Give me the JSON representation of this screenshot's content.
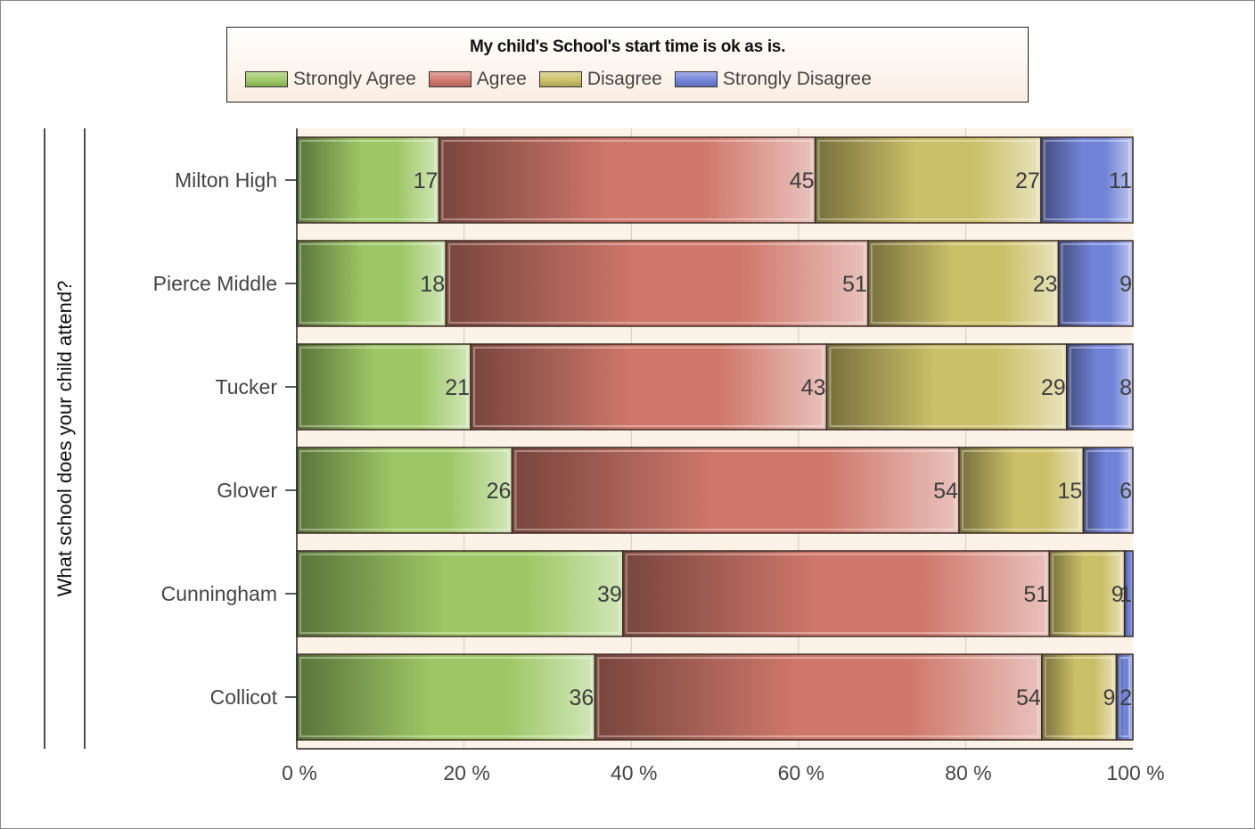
{
  "chart_data": {
    "type": "bar",
    "orientation": "horizontal",
    "stacked": "percent",
    "title": "My child's School's start time is ok as is.",
    "ylabel": "What school does your child attend?",
    "xlabel": "",
    "xlim": [
      0,
      100
    ],
    "x_ticks": [
      "0 %",
      "20 %",
      "40 %",
      "60 %",
      "80 %",
      "100 %"
    ],
    "categories": [
      "Milton High",
      "Pierce Middle",
      "Tucker",
      "Glover",
      "Cunningham",
      "Collicot"
    ],
    "series": [
      {
        "name": "Strongly Agree",
        "color": "#9cc764",
        "values": [
          17,
          18,
          21,
          26,
          39,
          36
        ]
      },
      {
        "name": "Agree",
        "color": "#cf776a",
        "values": [
          45,
          51,
          43,
          54,
          51,
          54
        ]
      },
      {
        "name": "Disagree",
        "color": "#cbbf67",
        "values": [
          27,
          23,
          29,
          15,
          9,
          9
        ]
      },
      {
        "name": "Strongly Disagree",
        "color": "#7183d8",
        "values": [
          11,
          9,
          8,
          6,
          1,
          2
        ]
      }
    ],
    "legend_position": "top",
    "grid": true,
    "plot_background": "#fdf2e8"
  }
}
